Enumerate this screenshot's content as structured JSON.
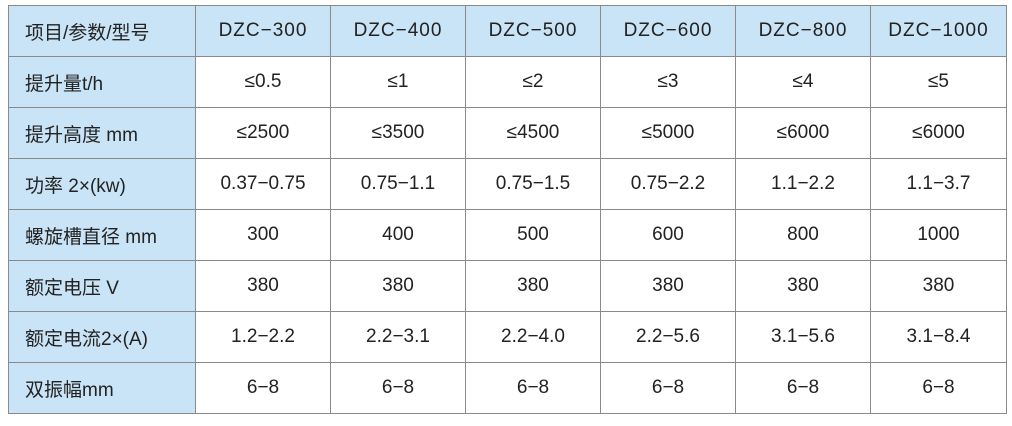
{
  "table": {
    "corner_label": "项目/参数/型号",
    "models": [
      "DZC−300",
      "DZC−400",
      "DZC−500",
      "DZC−600",
      "DZC−800",
      "DZC−1000"
    ],
    "rows": [
      {
        "label": "提升量t/h",
        "values": [
          "≤0.5",
          "≤1",
          "≤2",
          "≤3",
          "≤4",
          "≤5"
        ]
      },
      {
        "label": "提升高度 mm",
        "values": [
          "≤2500",
          "≤3500",
          "≤4500",
          "≤5000",
          "≤6000",
          "≤6000"
        ]
      },
      {
        "label": "功率 2×(kw)",
        "values": [
          "0.37−0.75",
          "0.75−1.1",
          "0.75−1.5",
          "0.75−2.2",
          "1.1−2.2",
          "1.1−3.7"
        ]
      },
      {
        "label": "螺旋槽直径 mm",
        "values": [
          "300",
          "400",
          "500",
          "600",
          "800",
          "1000"
        ]
      },
      {
        "label": "额定电压 V",
        "values": [
          "380",
          "380",
          "380",
          "380",
          "380",
          "380"
        ]
      },
      {
        "label": "额定电流2×(A)",
        "values": [
          "1.2−2.2",
          "2.2−3.1",
          "2.2−4.0",
          "2.2−5.6",
          "3.1−5.6",
          "3.1−8.4"
        ]
      },
      {
        "label": "双振幅mm",
        "values": [
          "6−8",
          "6−8",
          "6−8",
          "6−8",
          "6−8",
          "6−8"
        ]
      }
    ]
  },
  "colors": {
    "header_fill": "#c9e4f6",
    "border": "#8a8a8a",
    "text": "#222222"
  }
}
